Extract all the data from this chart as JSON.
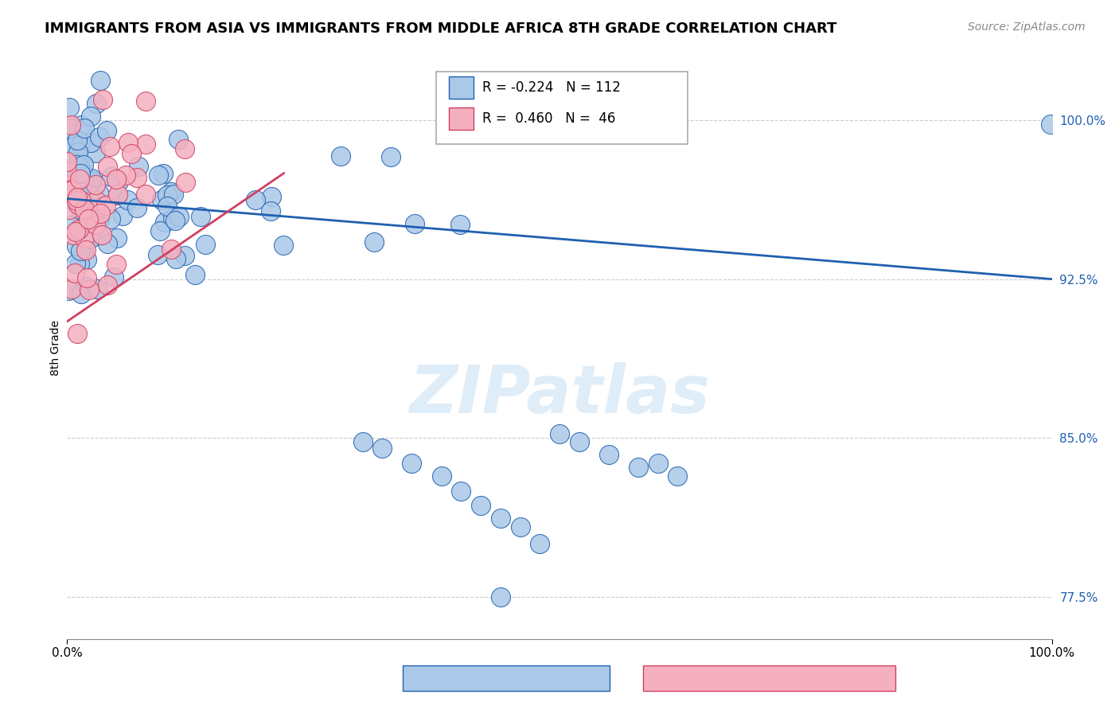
{
  "title": "IMMIGRANTS FROM ASIA VS IMMIGRANTS FROM MIDDLE AFRICA 8TH GRADE CORRELATION CHART",
  "source": "Source: ZipAtlas.com",
  "ylabel": "8th Grade",
  "ytick_labels": [
    "77.5%",
    "85.0%",
    "92.5%",
    "100.0%"
  ],
  "ytick_values": [
    0.775,
    0.85,
    0.925,
    1.0
  ],
  "legend_blue_r": "-0.224",
  "legend_blue_n": "112",
  "legend_pink_r": "0.460",
  "legend_pink_n": "46",
  "blue_color": "#aac8e8",
  "pink_color": "#f5b0c0",
  "blue_line_color": "#2060b0",
  "pink_line_color": "#d04060",
  "title_fontsize": 13,
  "source_fontsize": 10,
  "ylabel_fontsize": 10,
  "blue_trend_x": [
    0.0,
    1.0
  ],
  "blue_trend_y": [
    0.963,
    0.925
  ],
  "pink_trend_x": [
    0.0,
    0.22
  ],
  "pink_trend_y": [
    0.905,
    0.975
  ],
  "xlim": [
    0.0,
    1.0
  ],
  "ylim": [
    0.755,
    1.03
  ]
}
